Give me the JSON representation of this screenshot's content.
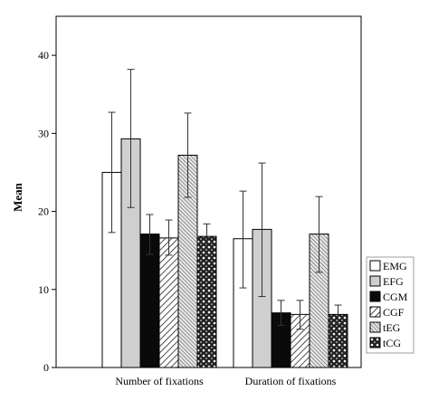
{
  "chart_data": {
    "type": "bar",
    "title": "",
    "xlabel": "",
    "ylabel": "Mean",
    "ylim": [
      0,
      45
    ],
    "yticks": [
      0,
      10,
      20,
      30,
      40
    ],
    "grid": false,
    "legend_position": "right-bottom",
    "categories": [
      "Number of fixations",
      "Duration of fixations"
    ],
    "series": [
      {
        "name": "EMG",
        "fill": "white",
        "values": [
          25.0,
          16.5
        ],
        "error": [
          [
            17.3,
            32.7
          ],
          [
            10.2,
            22.6
          ]
        ]
      },
      {
        "name": "EFG",
        "fill": "lightgray",
        "values": [
          29.3,
          17.7
        ],
        "error": [
          [
            20.5,
            38.2
          ],
          [
            9.1,
            26.2
          ]
        ]
      },
      {
        "name": "CGM",
        "fill": "black",
        "values": [
          17.1,
          7.0
        ],
        "error": [
          [
            14.5,
            19.6
          ],
          [
            5.4,
            8.6
          ]
        ]
      },
      {
        "name": "CGF",
        "fill": "diagonal-hatch",
        "values": [
          16.6,
          6.8
        ],
        "error": [
          [
            14.4,
            18.9
          ],
          [
            4.9,
            8.6
          ]
        ]
      },
      {
        "name": "tEG",
        "fill": "dense-diagonal-hatch",
        "values": [
          27.2,
          17.1
        ],
        "error": [
          [
            21.8,
            32.6
          ],
          [
            12.2,
            21.9
          ]
        ]
      },
      {
        "name": "tCG",
        "fill": "dark-cross-pattern",
        "values": [
          16.8,
          6.8
        ],
        "error": [
          [
            15.2,
            18.4
          ],
          [
            5.6,
            8.0
          ]
        ]
      }
    ]
  }
}
